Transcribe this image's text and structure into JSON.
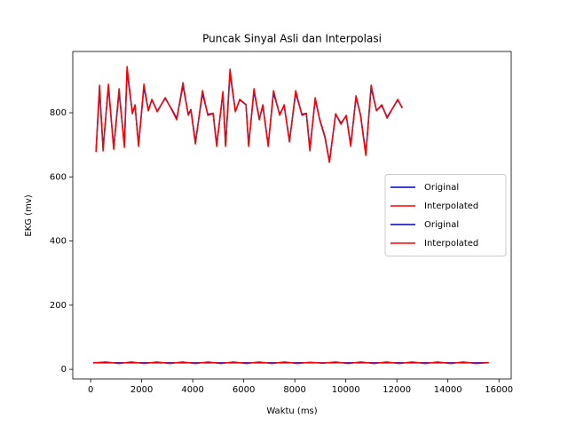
{
  "chart_data": {
    "type": "line",
    "title": "Puncak Sinyal Asli dan Interpolasi",
    "xlabel": "Waktu (ms)",
    "ylabel": "EKG (mv)",
    "xlim": [
      -700,
      16480
    ],
    "ylim": [
      -30,
      991
    ],
    "xticks": [
      0,
      2000,
      4000,
      6000,
      8000,
      10000,
      12000,
      14000,
      16000
    ],
    "yticks": [
      0,
      200,
      400,
      600,
      800
    ],
    "legend": "center right",
    "series": [
      {
        "name": "Original",
        "color": "#0000cc",
        "x": [
          209,
          348,
          487,
          696,
          904,
          1113,
          1322,
          1426,
          1635,
          1739,
          1878,
          2087,
          2261,
          2400,
          2609,
          2922,
          3200,
          3374,
          3617,
          3826,
          3930,
          4104,
          4383,
          4591,
          4800,
          4939,
          5183,
          5287,
          5461,
          5670,
          5843,
          6087,
          6191,
          6400,
          6609,
          6748,
          6957,
          7165,
          7409,
          7583,
          7791,
          8035,
          8278,
          8452,
          8591,
          8800,
          8974,
          9183,
          9357,
          9600,
          9809,
          10017,
          10191,
          10400,
          10574,
          10783,
          10991,
          11200,
          11409,
          11617,
          12035,
          12209
        ],
        "values": [
          678,
          870,
          690,
          880,
          690,
          865,
          700,
          930,
          800,
          822,
          700,
          880,
          808,
          840,
          805,
          845,
          808,
          782,
          885,
          795,
          810,
          708,
          860,
          795,
          798,
          700,
          860,
          700,
          925,
          805,
          840,
          825,
          700,
          868,
          780,
          822,
          700,
          862,
          795,
          822,
          712,
          862,
          795,
          798,
          688,
          842,
          780,
          725,
          648,
          795,
          768,
          790,
          700,
          848,
          795,
          672,
          878,
          808,
          822,
          786,
          840,
          816
        ]
      },
      {
        "name": "Interpolated",
        "color": "#ff0000",
        "x": [
          209,
          348,
          487,
          696,
          904,
          1113,
          1322,
          1426,
          1635,
          1739,
          1878,
          2087,
          2261,
          2400,
          2609,
          2922,
          3200,
          3374,
          3617,
          3826,
          3930,
          4104,
          4383,
          4591,
          4800,
          4939,
          5183,
          5287,
          5461,
          5670,
          5843,
          6087,
          6191,
          6400,
          6609,
          6748,
          6957,
          7165,
          7409,
          7583,
          7791,
          8035,
          8278,
          8452,
          8591,
          8800,
          8974,
          9183,
          9357,
          9600,
          9809,
          10017,
          10191,
          10400,
          10574,
          10783,
          10991,
          11200,
          11409,
          11617,
          12035,
          12209
        ],
        "values": [
          678,
          886,
          681,
          889,
          686,
          875,
          692,
          944,
          797,
          825,
          695,
          889,
          806,
          842,
          803,
          847,
          806,
          778,
          894,
          792,
          808,
          703,
          869,
          792,
          797,
          695,
          866,
          695,
          936,
          803,
          842,
          825,
          695,
          875,
          778,
          825,
          695,
          869,
          792,
          825,
          709,
          869,
          792,
          797,
          681,
          847,
          778,
          722,
          645,
          797,
          764,
          792,
          695,
          853,
          792,
          667,
          886,
          806,
          825,
          783,
          842,
          814
        ]
      },
      {
        "name": "Original",
        "color": "#0000cc",
        "x": [
          100,
          600,
          1100,
          1600,
          2100,
          2600,
          3100,
          3600,
          4100,
          4600,
          5100,
          5600,
          6100,
          6600,
          7100,
          7600,
          8100,
          8600,
          9100,
          9600,
          10100,
          10600,
          11100,
          11600,
          12100,
          12600,
          13100,
          13600,
          14100,
          14600,
          15100,
          15600
        ],
        "values": [
          20,
          21,
          20,
          21,
          20,
          21,
          20,
          21,
          20,
          21,
          20,
          21,
          20,
          21,
          20,
          21,
          20,
          21,
          20,
          21,
          20,
          21,
          20,
          21,
          20,
          21,
          20,
          21,
          20,
          21,
          20,
          21
        ]
      },
      {
        "name": "Interpolated",
        "color": "#ff0000",
        "x": [
          100,
          600,
          1100,
          1600,
          2100,
          2600,
          3100,
          3600,
          4100,
          4600,
          5100,
          5600,
          6100,
          6600,
          7100,
          7600,
          8100,
          8600,
          9100,
          9600,
          10100,
          10600,
          11100,
          11600,
          12100,
          12600,
          13100,
          13600,
          14100,
          14600,
          15100,
          15600
        ],
        "values": [
          20,
          23,
          18,
          23,
          18,
          23,
          18,
          23,
          18,
          23,
          18,
          23,
          18,
          23,
          18,
          23,
          18,
          22,
          19,
          23,
          18,
          23,
          18,
          23,
          18,
          23,
          18,
          23,
          18,
          23,
          18,
          21
        ]
      }
    ]
  }
}
